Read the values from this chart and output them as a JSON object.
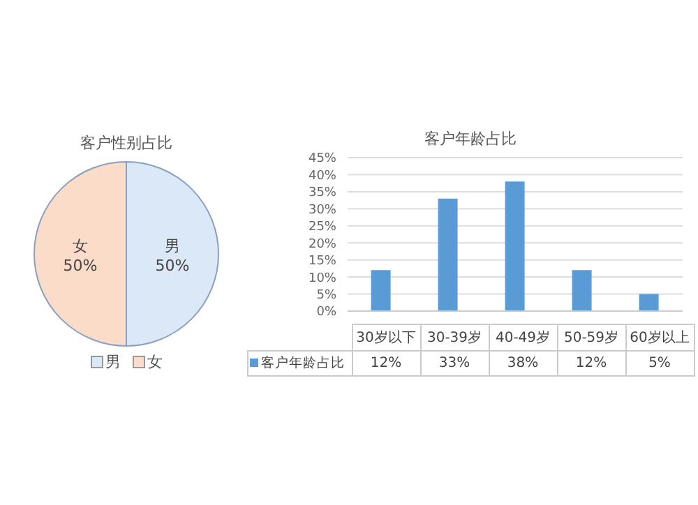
{
  "chart_data": [
    {
      "type": "pie",
      "title": "客户性别占比",
      "categories": [
        "男",
        "女"
      ],
      "values": [
        50,
        50
      ],
      "colors": [
        "#dbe8f7",
        "#fbdcc9"
      ],
      "value_labels": [
        "50%",
        "50%"
      ],
      "legend": "bottom"
    },
    {
      "type": "bar",
      "title": "客户年龄占比",
      "categories": [
        "30岁以下",
        "30-39岁",
        "40-49岁",
        "50-59岁",
        "60岁以上"
      ],
      "series": [
        {
          "name": "客户年龄占比",
          "color": "#5b9bd5",
          "values": [
            12,
            33,
            38,
            12,
            5
          ],
          "value_labels": [
            "12%",
            "33%",
            "38%",
            "12%",
            "5%"
          ]
        }
      ],
      "ylim": [
        0,
        45
      ],
      "yticks": [
        {
          "value": 0,
          "label": "0%"
        },
        {
          "value": 5,
          "label": "5%"
        },
        {
          "value": 10,
          "label": "10%"
        },
        {
          "value": 15,
          "label": "15%"
        },
        {
          "value": 20,
          "label": "20%"
        },
        {
          "value": 25,
          "label": "25%"
        },
        {
          "value": 30,
          "label": "30%"
        },
        {
          "value": 35,
          "label": "35%"
        },
        {
          "value": 40,
          "label": "40%"
        },
        {
          "value": 45,
          "label": "45%"
        }
      ],
      "grid": "y",
      "legend": "bottom",
      "data_labels": true
    }
  ]
}
